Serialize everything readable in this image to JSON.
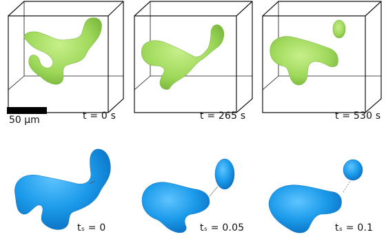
{
  "figure": {
    "top_row": {
      "time_labels": [
        "t =  0 s",
        "t =  265 s",
        "t =  530 s"
      ],
      "shape_color": "#9ED85A",
      "box_color": "#111111"
    },
    "scale_bar": {
      "label": "50  μm"
    },
    "bottom_row": {
      "labels": [
        "tₛ =  0",
        "tₛ =  0.05",
        "tₛ =  0.1"
      ],
      "shape_color": "#1C9BEA"
    }
  }
}
